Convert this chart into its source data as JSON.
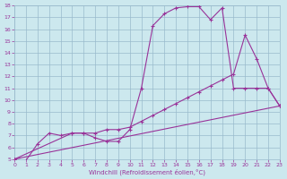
{
  "xlabel": "Windchill (Refroidissement éolien,°C)",
  "bg_color": "#cce8ee",
  "line_color": "#993399",
  "grid_color": "#99bbcc",
  "xlim": [
    0,
    23
  ],
  "ylim": [
    5,
    18
  ],
  "xticks": [
    0,
    1,
    2,
    3,
    4,
    5,
    6,
    7,
    8,
    9,
    10,
    11,
    12,
    13,
    14,
    15,
    16,
    17,
    18,
    19,
    20,
    21,
    22,
    23
  ],
  "yticks": [
    5,
    6,
    7,
    8,
    9,
    10,
    11,
    12,
    13,
    14,
    15,
    16,
    17,
    18
  ],
  "curve1_x": [
    0,
    1,
    2,
    3,
    4,
    5,
    6,
    7,
    8,
    9,
    10,
    11,
    12,
    13,
    14,
    15,
    16,
    17,
    18,
    19,
    20,
    21,
    22,
    23
  ],
  "curve1_y": [
    5.0,
    4.9,
    6.3,
    7.2,
    7.0,
    7.2,
    7.2,
    6.8,
    6.5,
    6.5,
    7.5,
    11.0,
    16.3,
    17.3,
    17.8,
    17.9,
    17.9,
    16.8,
    17.8,
    11.0,
    11.0,
    11.0,
    11.0,
    9.5
  ],
  "curve2_x": [
    0,
    23
  ],
  "curve2_y": [
    5.0,
    9.5
  ],
  "curve3_x": [
    0,
    5,
    6,
    7,
    8,
    9,
    10,
    11,
    12,
    13,
    14,
    15,
    16,
    17,
    18,
    19,
    20,
    21,
    22,
    23
  ],
  "curve3_y": [
    5.0,
    7.2,
    7.2,
    7.2,
    7.5,
    7.5,
    7.7,
    8.2,
    8.7,
    9.2,
    9.7,
    10.2,
    10.7,
    11.2,
    11.7,
    12.2,
    15.5,
    13.5,
    11.0,
    9.5
  ]
}
